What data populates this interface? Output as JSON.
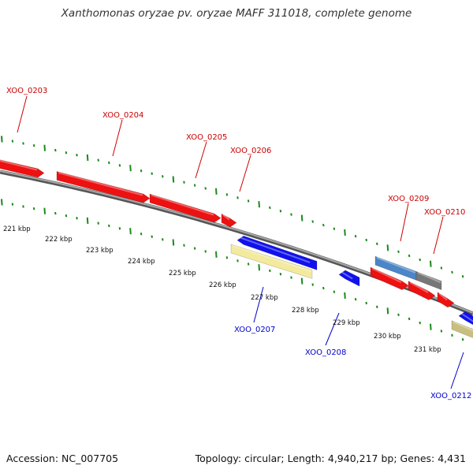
{
  "title": "Xanthomonas oryzae pv. oryzae MAFF 311018, complete genome",
  "footer": {
    "accession": "Accession: NC_007705",
    "summary": "Topology: circular; Length: 4,940,217 bp; Genes: 4,431"
  },
  "colors": {
    "forward_gene": "#ee1111",
    "reverse_gene": "#1111ee",
    "forward_label": "#cc0000",
    "reverse_label": "#0000cc",
    "pale_yellow_gene": "#f3ea9e",
    "khaki_gene": "#c8bf80",
    "steel_blue_gene": "#4a86c8",
    "grey_gene": "#777777",
    "backbone": "#808080",
    "tick": "#1a8a1a"
  },
  "scale_labels": [
    "221 kbp",
    "222 kbp",
    "223 kbp",
    "224 kbp",
    "225 kbp",
    "226 kbp",
    "227 kbp",
    "228 kbp",
    "229 kbp",
    "230 kbp",
    "231 kbp"
  ],
  "gene_labels": [
    {
      "text": "XOO_0203",
      "strand": "forward"
    },
    {
      "text": "XOO_0204",
      "strand": "forward"
    },
    {
      "text": "XOO_0205",
      "strand": "forward"
    },
    {
      "text": "XOO_0206",
      "strand": "forward"
    },
    {
      "text": "XOO_0209",
      "strand": "forward"
    },
    {
      "text": "XOO_0210",
      "strand": "forward"
    },
    {
      "text": "XOO_0207",
      "strand": "reverse"
    },
    {
      "text": "XOO_0208",
      "strand": "reverse"
    },
    {
      "text": "XOO_0212",
      "strand": "reverse"
    }
  ]
}
